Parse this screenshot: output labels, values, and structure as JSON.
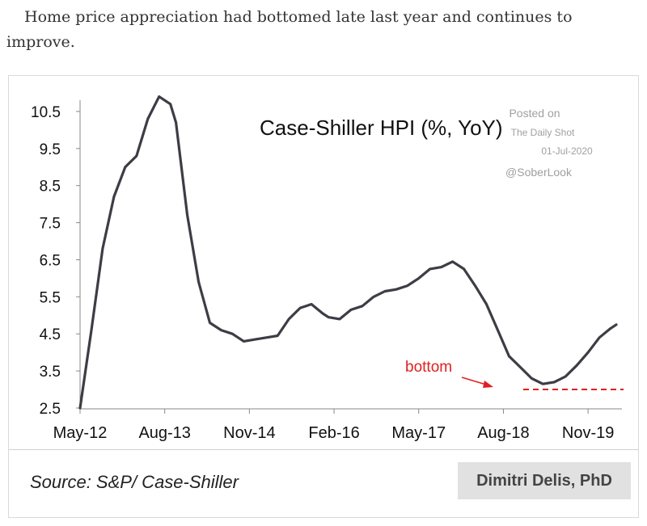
{
  "intro_text": "Home price appreciation had bottomed late last year and continues to improve.",
  "chart_data": {
    "type": "line",
    "title": "Case-Shiller HPI (%, YoY)",
    "xlabel": "",
    "ylabel": "",
    "x_tick_labels": [
      "May-12",
      "Aug-13",
      "Nov-14",
      "Feb-16",
      "May-17",
      "Aug-18",
      "Nov-19"
    ],
    "y_tick_labels": [
      "10.5",
      "9.5",
      "8.5",
      "7.5",
      "6.5",
      "5.5",
      "4.5",
      "3.5",
      "2.5"
    ],
    "ylim": [
      2.5,
      11.0
    ],
    "xlim": [
      "2012-05",
      "2020-05"
    ],
    "grid": false,
    "series": [
      {
        "color": "#3d3d45",
        "x": [
          "2012-05",
          "2012-07",
          "2012-09",
          "2012-11",
          "2013-01",
          "2013-03",
          "2013-05",
          "2013-07",
          "2013-09",
          "2013-10",
          "2013-12",
          "2014-02",
          "2014-04",
          "2014-06",
          "2014-08",
          "2014-10",
          "2014-12",
          "2015-02",
          "2015-04",
          "2015-06",
          "2015-08",
          "2015-10",
          "2015-12",
          "2016-01",
          "2016-03",
          "2016-05",
          "2016-07",
          "2016-09",
          "2016-11",
          "2017-01",
          "2017-03",
          "2017-05",
          "2017-07",
          "2017-09",
          "2017-11",
          "2018-01",
          "2018-03",
          "2018-05",
          "2018-07",
          "2018-09",
          "2018-11",
          "2019-01",
          "2019-03",
          "2019-05",
          "2019-07",
          "2019-09",
          "2019-11",
          "2020-01",
          "2020-03",
          "2020-04"
        ],
        "values": [
          2.5,
          4.6,
          6.8,
          8.2,
          9.0,
          9.3,
          10.3,
          10.9,
          10.7,
          10.2,
          7.7,
          5.9,
          4.8,
          4.6,
          4.5,
          4.3,
          4.35,
          4.4,
          4.45,
          4.9,
          5.2,
          5.3,
          5.05,
          4.95,
          4.9,
          5.15,
          5.25,
          5.5,
          5.65,
          5.7,
          5.8,
          6.0,
          6.25,
          6.3,
          6.45,
          6.25,
          5.8,
          5.3,
          4.6,
          3.9,
          3.6,
          3.3,
          3.15,
          3.2,
          3.35,
          3.65,
          4.0,
          4.4,
          4.65,
          4.75
        ]
      }
    ],
    "annotations": [
      {
        "text": "bottom",
        "color": "#e02020"
      },
      {
        "text": "Posted on",
        "color": "#a0a0a0"
      },
      {
        "text": "The Daily Shot",
        "color": "#a0a0a0"
      },
      {
        "text": "01-Jul-2020",
        "color": "#a0a0a0"
      },
      {
        "text": "@SoberLook",
        "color": "#a0a0a0"
      }
    ],
    "bottom_line": {
      "value": 3.0,
      "color": "#e02020",
      "style": "dashed"
    }
  },
  "source": "Source: S&P/ Case-Shiller",
  "author": "Dimitri Delis, PhD"
}
